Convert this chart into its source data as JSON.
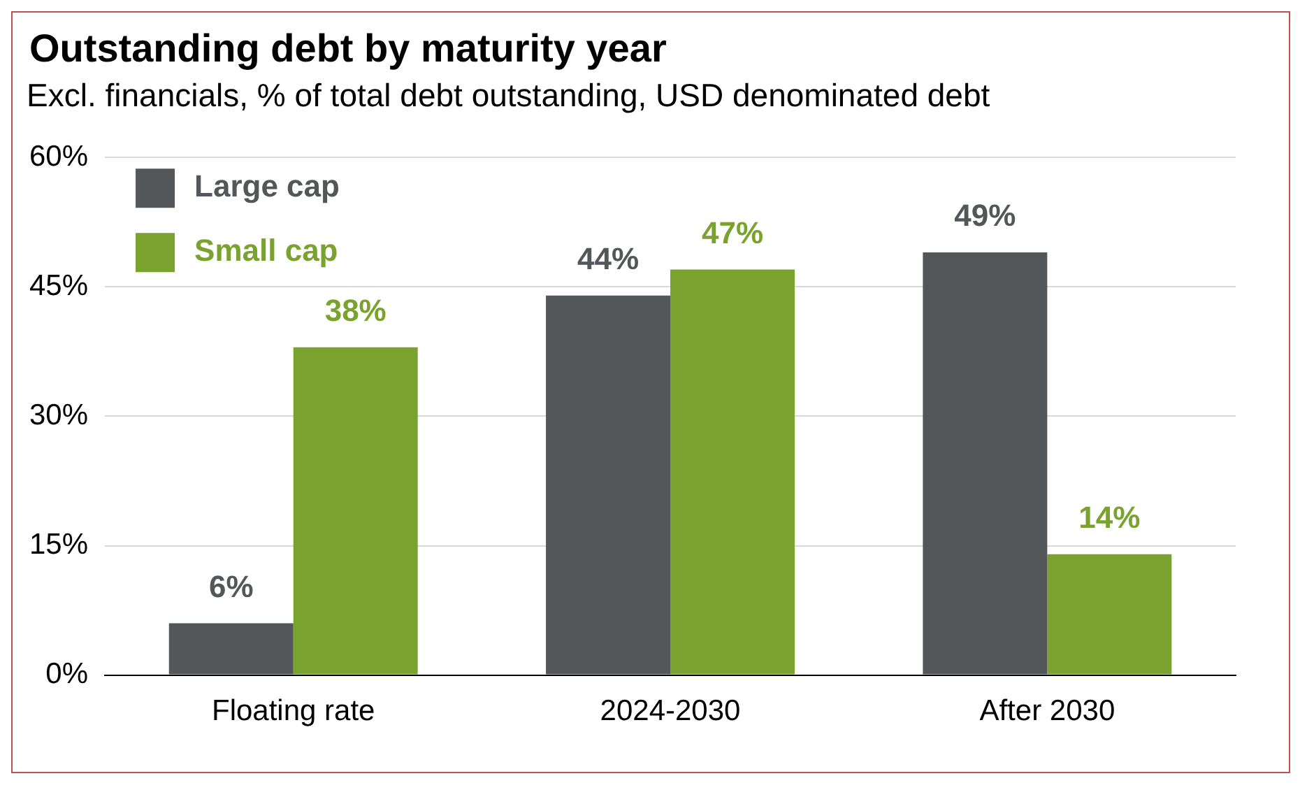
{
  "chart_data": {
    "type": "bar",
    "title": "Outstanding debt by maturity year",
    "subtitle": "Excl. financials, % of total debt outstanding, USD denominated debt",
    "categories": [
      "Floating rate",
      "2024-2030",
      "After 2030"
    ],
    "series": [
      {
        "name": "Large cap",
        "color": "#54575a",
        "values": [
          6,
          44,
          49
        ],
        "value_labels": [
          "6%",
          "44%",
          "49%"
        ]
      },
      {
        "name": "Small cap",
        "color": "#7aa22e",
        "values": [
          38,
          47,
          14
        ],
        "value_labels": [
          "38%",
          "47%",
          "14%"
        ]
      }
    ],
    "ylim": [
      0,
      60
    ],
    "yticks": [
      {
        "value": 0,
        "label": "0%"
      },
      {
        "value": 15,
        "label": "15%"
      },
      {
        "value": 30,
        "label": "30%"
      },
      {
        "value": 45,
        "label": "45%"
      },
      {
        "value": 60,
        "label": "60%"
      }
    ],
    "grid": "y",
    "legend": "top left"
  }
}
